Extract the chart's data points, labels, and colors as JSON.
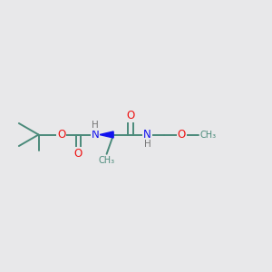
{
  "background_color": "#e8e8ea",
  "bond_color": "#4a8a7a",
  "atom_colors": {
    "O": "#ee1111",
    "N": "#1111ee",
    "H": "#777777",
    "C": "#4a8a7a"
  },
  "figsize": [
    3.0,
    3.0
  ],
  "dpi": 100,
  "bond_lw": 1.4,
  "font_size_atom": 8.5,
  "font_size_h": 7.5,
  "font_size_label": 7.0
}
